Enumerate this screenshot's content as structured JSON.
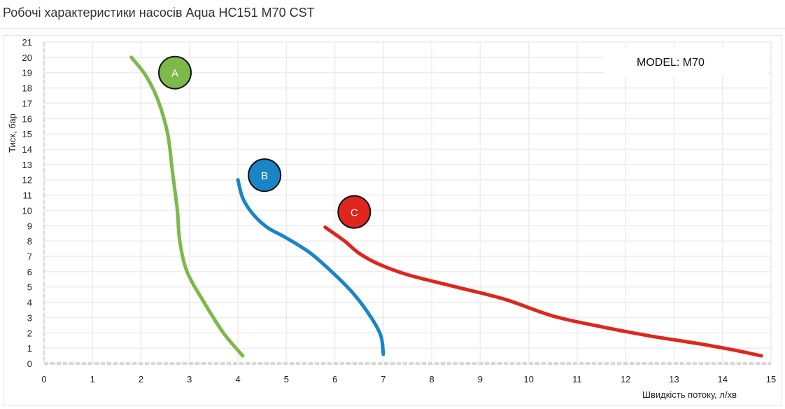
{
  "page": {
    "title": "Робочі характеристики насосів Aqua HC151 M70 CST"
  },
  "chart_data": {
    "type": "line",
    "xlabel": "Швидкість потоку, л/хв",
    "ylabel": "Тиск, бар",
    "xlim": [
      0,
      15
    ],
    "ylim": [
      0,
      21
    ],
    "x_ticks": [
      0,
      1,
      2,
      3,
      4,
      5,
      6,
      7,
      8,
      9,
      10,
      11,
      12,
      13,
      14,
      15
    ],
    "y_ticks": [
      0,
      1,
      2,
      3,
      4,
      5,
      6,
      7,
      8,
      9,
      10,
      11,
      12,
      13,
      14,
      15,
      16,
      17,
      18,
      19,
      20,
      21
    ],
    "grid": true,
    "annotation_box": "MODEL: M70",
    "series": [
      {
        "name": "A",
        "color": "#7cb94a",
        "badge": {
          "x": 2.7,
          "y": 19
        },
        "points": [
          [
            1.8,
            20
          ],
          [
            2.1,
            18.8
          ],
          [
            2.35,
            17.2
          ],
          [
            2.55,
            15
          ],
          [
            2.65,
            12.5
          ],
          [
            2.75,
            10
          ],
          [
            2.8,
            8
          ],
          [
            2.95,
            6
          ],
          [
            3.3,
            4
          ],
          [
            3.7,
            2
          ],
          [
            4.1,
            0.5
          ]
        ]
      },
      {
        "name": "B",
        "color": "#1a84c7",
        "badge": {
          "x": 4.55,
          "y": 12.3
        },
        "points": [
          [
            4.0,
            12
          ],
          [
            4.1,
            10.8
          ],
          [
            4.3,
            9.8
          ],
          [
            4.6,
            8.9
          ],
          [
            5.0,
            8.2
          ],
          [
            5.5,
            7.2
          ],
          [
            6.0,
            5.8
          ],
          [
            6.4,
            4.5
          ],
          [
            6.75,
            3
          ],
          [
            6.95,
            1.8
          ],
          [
            7.0,
            0.6
          ]
        ]
      },
      {
        "name": "C",
        "color": "#e0261c",
        "badge": {
          "x": 6.4,
          "y": 9.9
        },
        "points": [
          [
            5.8,
            8.9
          ],
          [
            6.2,
            8
          ],
          [
            6.5,
            7.2
          ],
          [
            6.9,
            6.5
          ],
          [
            7.5,
            5.8
          ],
          [
            8.5,
            5
          ],
          [
            9.5,
            4.2
          ],
          [
            10.5,
            3.1
          ],
          [
            11.5,
            2.4
          ],
          [
            12.5,
            1.8
          ],
          [
            13.5,
            1.3
          ],
          [
            14.2,
            0.9
          ],
          [
            14.8,
            0.5
          ]
        ]
      }
    ]
  }
}
